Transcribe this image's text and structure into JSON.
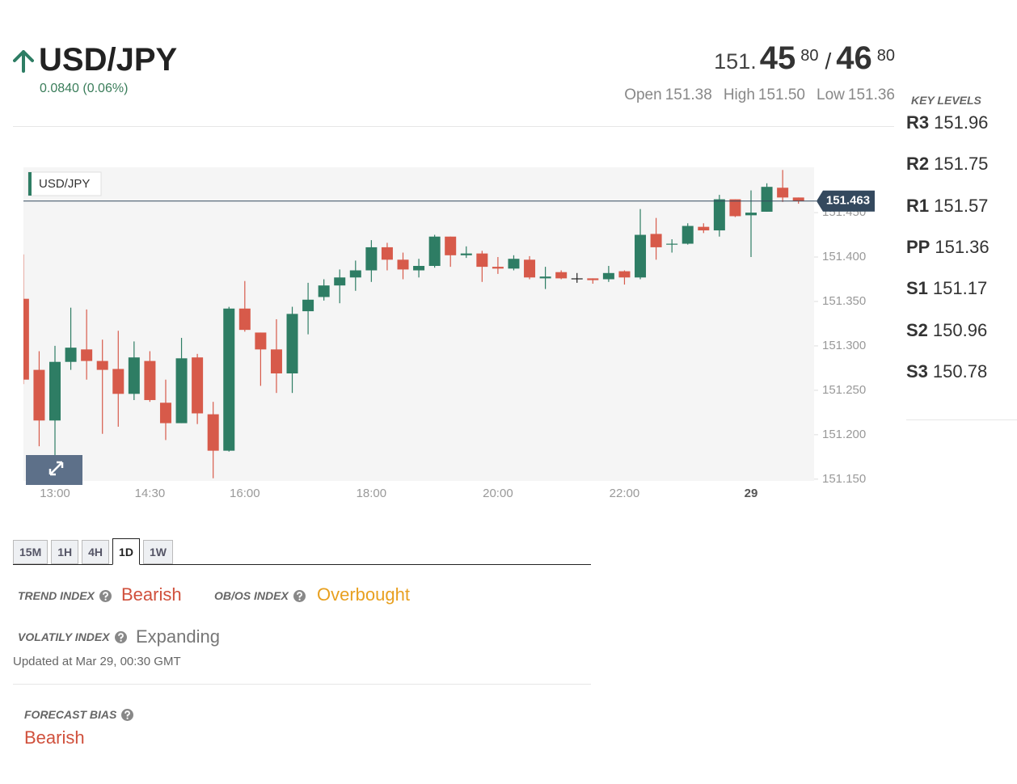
{
  "header": {
    "symbol": "USD/JPY",
    "change": "0.0840 (0.06%)",
    "bid": {
      "big": "151.",
      "pips": "45",
      "fraction": "80"
    },
    "separator": "/",
    "ask": {
      "pips": "46",
      "fraction": "80"
    },
    "ohlc": [
      {
        "label": "Open",
        "value": "151.38"
      },
      {
        "label": "High",
        "value": "151.50"
      },
      {
        "label": "Low",
        "value": "151.36"
      }
    ]
  },
  "key_levels": {
    "title": "KEY LEVELS",
    "levels": [
      {
        "label": "R3",
        "value": "151.96"
      },
      {
        "label": "R2",
        "value": "151.75"
      },
      {
        "label": "R1",
        "value": "151.57"
      },
      {
        "label": "PP",
        "value": "151.36"
      },
      {
        "label": "S1",
        "value": "151.17"
      },
      {
        "label": "S2",
        "value": "150.96"
      },
      {
        "label": "S3",
        "value": "150.78"
      }
    ]
  },
  "chart_data": {
    "type": "candlestick",
    "title": "USD/JPY",
    "categories": [
      null,
      null,
      "13:00",
      null,
      null,
      null,
      null,
      null,
      "14:30",
      null,
      null,
      null,
      null,
      null,
      "16:00",
      null,
      null,
      null,
      null,
      null,
      null,
      null,
      "18:00",
      null,
      null,
      null,
      null,
      null,
      null,
      null,
      "20:00",
      null,
      null,
      null,
      null,
      null,
      null,
      null,
      "22:00",
      null,
      null,
      null,
      null,
      null,
      null,
      null,
      "29",
      null,
      null,
      null
    ],
    "open": [
      151.353,
      151.273,
      151.216,
      151.282,
      151.296,
      151.283,
      151.274,
      151.246,
      151.283,
      151.236,
      151.213,
      151.287,
      151.223,
      151.182,
      151.342,
      151.315,
      151.296,
      151.269,
      151.339,
      151.355,
      151.368,
      151.377,
      151.385,
      151.411,
      151.397,
      151.385,
      151.39,
      151.423,
      151.402,
      151.404,
      151.389,
      151.387,
      151.397,
      151.376,
      151.383,
      151.376,
      151.376,
      151.375,
      151.384,
      151.377,
      151.426,
      151.414,
      151.415,
      151.434,
      151.43,
      151.465,
      151.447,
      151.451,
      151.478,
      151.467
    ],
    "high": [
      151.403,
      151.294,
      151.3,
      151.343,
      151.341,
      151.307,
      151.317,
      151.305,
      151.294,
      151.262,
      151.309,
      151.291,
      151.237,
      151.344,
      151.373,
      151.315,
      151.33,
      151.344,
      151.371,
      151.375,
      151.386,
      151.396,
      151.419,
      151.416,
      151.405,
      151.398,
      151.425,
      151.423,
      151.412,
      151.407,
      151.4,
      151.402,
      151.401,
      151.389,
      151.385,
      151.382,
      151.376,
      151.39,
      151.385,
      151.454,
      151.444,
      151.42,
      151.438,
      151.438,
      151.47,
      151.465,
      151.475,
      151.483,
      151.498,
      151.467
    ],
    "low": [
      151.257,
      151.187,
      151.175,
      151.273,
      151.262,
      151.201,
      151.209,
      151.239,
      151.237,
      151.194,
      151.213,
      151.212,
      151.151,
      151.181,
      151.316,
      151.255,
      151.247,
      151.247,
      151.313,
      151.351,
      151.348,
      151.362,
      151.372,
      151.385,
      151.375,
      151.377,
      151.388,
      151.389,
      151.399,
      151.372,
      151.381,
      151.385,
      151.375,
      151.364,
      151.375,
      151.371,
      151.37,
      151.372,
      151.369,
      151.375,
      151.397,
      151.405,
      151.414,
      151.427,
      151.423,
      151.445,
      151.4,
      151.451,
      151.462,
      151.46
    ],
    "close": [
      151.262,
      151.216,
      151.282,
      151.298,
      151.283,
      151.273,
      151.246,
      151.287,
      151.239,
      151.213,
      151.286,
      151.224,
      151.182,
      151.342,
      151.318,
      151.296,
      151.269,
      151.336,
      151.352,
      151.368,
      151.377,
      151.385,
      151.411,
      151.397,
      151.386,
      151.39,
      151.423,
      151.402,
      151.404,
      151.389,
      151.387,
      151.398,
      151.377,
      151.378,
      151.376,
      151.376,
      151.374,
      151.382,
      151.377,
      151.425,
      151.411,
      151.415,
      151.435,
      151.43,
      151.465,
      151.446,
      151.45,
      151.479,
      151.467,
      151.463
    ],
    "up_color": "#2e7d64",
    "down_color": "#d75a4a",
    "flat_color": "#222222",
    "ylim": [
      151.148,
      151.501
    ],
    "yticks": [
      {
        "value": 151.15,
        "label": "151.150"
      },
      {
        "value": 151.2,
        "label": "151.200"
      },
      {
        "value": 151.25,
        "label": "151.250"
      },
      {
        "value": 151.3,
        "label": "151.300"
      },
      {
        "value": 151.35,
        "label": "151.350"
      },
      {
        "value": 151.4,
        "label": "151.400"
      },
      {
        "value": 151.45,
        "label": "151.450"
      }
    ],
    "price_line": 151.463
  },
  "timeframes": {
    "options": [
      "15M",
      "1H",
      "4H",
      "1D",
      "1W"
    ],
    "active": "1D"
  },
  "indices": {
    "trend": {
      "label": "TREND INDEX",
      "value": "Bearish"
    },
    "obos": {
      "label": "OB/OS INDEX",
      "value": "Overbought"
    },
    "volatility": {
      "label": "VOLATILY INDEX",
      "value": "Expanding"
    },
    "updated": "Updated at Mar 29, 00:30 GMT"
  },
  "forecast": {
    "label": "FORECAST BIAS",
    "value": "Bearish"
  }
}
